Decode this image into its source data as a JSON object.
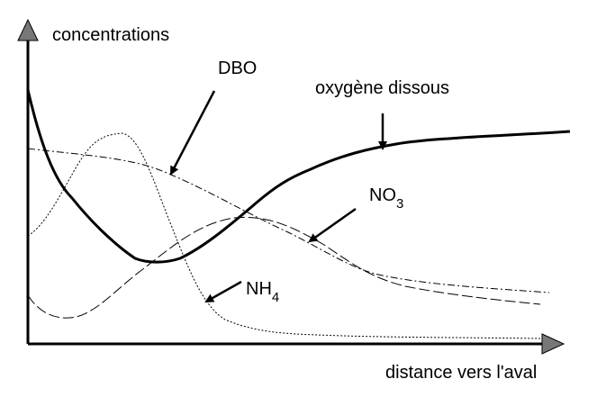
{
  "axes": {
    "y_label": "concentrations",
    "x_label": "distance vers l'aval"
  },
  "curves": [
    {
      "label": "DBO"
    },
    {
      "label": "oxygène dissous"
    },
    {
      "label": "NO",
      "subscript": "3"
    },
    {
      "label": "NH",
      "subscript": "4"
    }
  ]
}
